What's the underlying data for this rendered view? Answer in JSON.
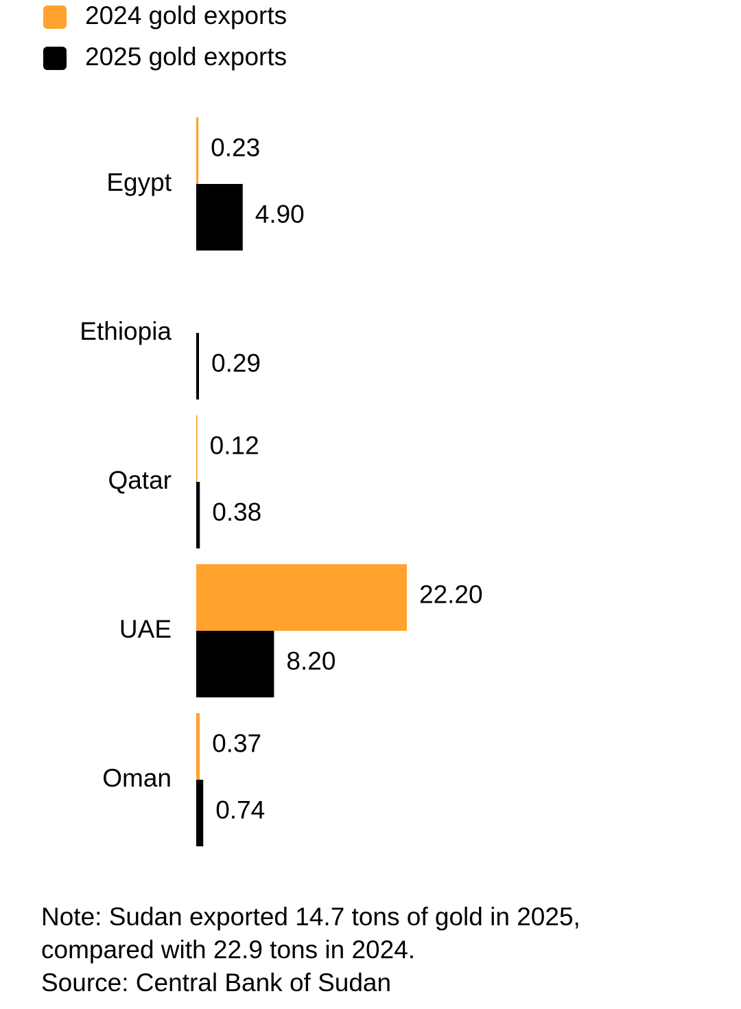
{
  "chart_data": {
    "type": "bar",
    "orientation": "horizontal",
    "categories": [
      "Egypt",
      "Ethiopia",
      "Qatar",
      "UAE",
      "Oman"
    ],
    "series": [
      {
        "name": "2024 gold exports",
        "color": "#ffa22e",
        "values": [
          0.23,
          null,
          0.12,
          22.2,
          0.37
        ],
        "value_labels": [
          "0.23",
          null,
          "0.12",
          "22.20",
          "0.37"
        ]
      },
      {
        "name": "2025 gold exports",
        "color": "#000000",
        "values": [
          4.9,
          0.29,
          0.38,
          8.2,
          0.74
        ],
        "value_labels": [
          "4.90",
          "0.29",
          "0.38",
          "8.20",
          "0.74"
        ]
      }
    ],
    "legend": "top-left",
    "note": "Note: Sudan exported 14.7 tons of gold in 2025, compared with 22.9 tons in 2024.",
    "source": "Source: Central Bank of Sudan"
  }
}
